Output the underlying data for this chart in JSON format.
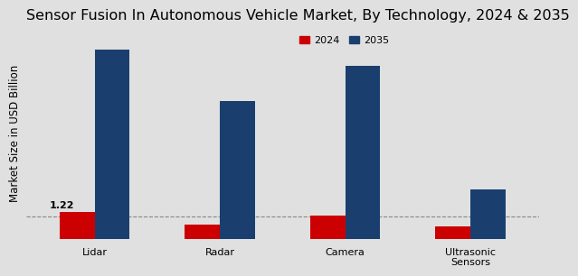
{
  "title": "Sensor Fusion In Autonomous Vehicle Market, By Technology, 2024 & 2035",
  "ylabel": "Market Size in USD Billion",
  "categories": [
    "Lidar",
    "Radar",
    "Camera",
    "Ultrasonic\nSensors"
  ],
  "values_2024": [
    1.22,
    0.62,
    1.05,
    0.55
  ],
  "values_2035": [
    8.5,
    6.2,
    7.8,
    2.2
  ],
  "color_2024": "#cc0000",
  "color_2035": "#1a3f6f",
  "background_color": "#e0e0e0",
  "annotation_text": "1.22",
  "bar_width": 0.28,
  "legend_labels": [
    "2024",
    "2035"
  ],
  "dashed_line_y": 1.0,
  "title_fontsize": 11.5,
  "label_fontsize": 8.5,
  "tick_fontsize": 8
}
